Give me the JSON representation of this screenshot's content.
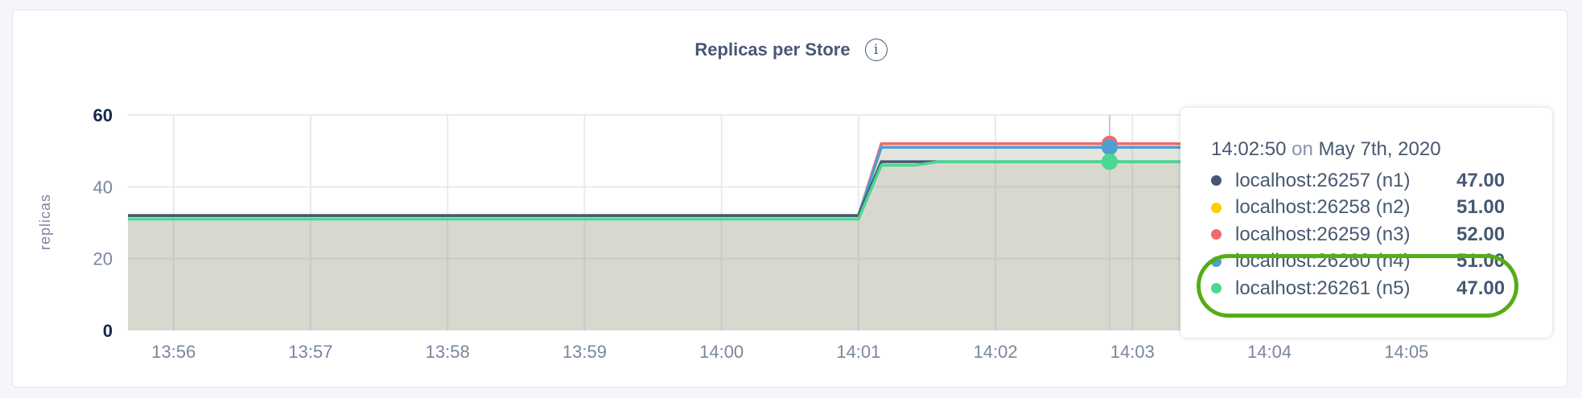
{
  "chart_data": {
    "type": "area",
    "title": "Replicas per Store",
    "title_icon": "info-icon",
    "ylabel": "replicas",
    "xlabel": "",
    "ylim": [
      0,
      60
    ],
    "yticks": [
      "0",
      "20",
      "40",
      "60"
    ],
    "xlim": [
      "13:55:40",
      "14:06:00"
    ],
    "xticks": [
      "13:56",
      "13:57",
      "13:58",
      "13:59",
      "14:00",
      "14:01",
      "14:02",
      "14:03",
      "14:04",
      "14:05"
    ],
    "grid": true,
    "hover_time": "14:02:50",
    "series": [
      {
        "name": "localhost:26257 (n1)",
        "color": "#475872",
        "points": [
          [
            "13:55:40",
            32
          ],
          [
            "14:01:00",
            32
          ],
          [
            "14:01:10",
            47
          ],
          [
            "14:06:00",
            47
          ]
        ]
      },
      {
        "name": "localhost:26258 (n2)",
        "color": "#ffcd02",
        "points": [
          [
            "13:55:40",
            32
          ],
          [
            "14:01:00",
            32
          ],
          [
            "14:01:10",
            51
          ],
          [
            "14:06:00",
            51
          ]
        ]
      },
      {
        "name": "localhost:26259 (n3)",
        "color": "#f16969",
        "points": [
          [
            "13:55:40",
            32
          ],
          [
            "14:01:00",
            32
          ],
          [
            "14:01:10",
            52
          ],
          [
            "14:06:00",
            52
          ]
        ]
      },
      {
        "name": "localhost:26260 (n4)",
        "color": "#4e9fd1",
        "points": [
          [
            "13:55:40",
            32
          ],
          [
            "14:01:00",
            32
          ],
          [
            "14:01:10",
            51
          ],
          [
            "14:06:00",
            51
          ]
        ]
      },
      {
        "name": "localhost:26261 (n5)",
        "color": "#49d990",
        "points": [
          [
            "13:55:40",
            31
          ],
          [
            "14:01:00",
            31
          ],
          [
            "14:01:10",
            46
          ],
          [
            "14:01:25",
            46
          ],
          [
            "14:01:35",
            47
          ],
          [
            "14:06:00",
            47
          ]
        ]
      }
    ]
  },
  "tooltip": {
    "time": "14:02:50",
    "on": "on",
    "date": "May 7th, 2020",
    "rows": [
      {
        "name": "localhost:26257 (n1)",
        "value": "47.00",
        "color": "#475872"
      },
      {
        "name": "localhost:26258 (n2)",
        "value": "51.00",
        "color": "#ffcd02"
      },
      {
        "name": "localhost:26259 (n3)",
        "value": "52.00",
        "color": "#f16969"
      },
      {
        "name": "localhost:26260 (n4)",
        "value": "51.00",
        "color": "#4e9fd1"
      },
      {
        "name": "localhost:26261 (n5)",
        "value": "47.00",
        "color": "#49d990"
      }
    ],
    "highlight_color": "#55ad15"
  }
}
